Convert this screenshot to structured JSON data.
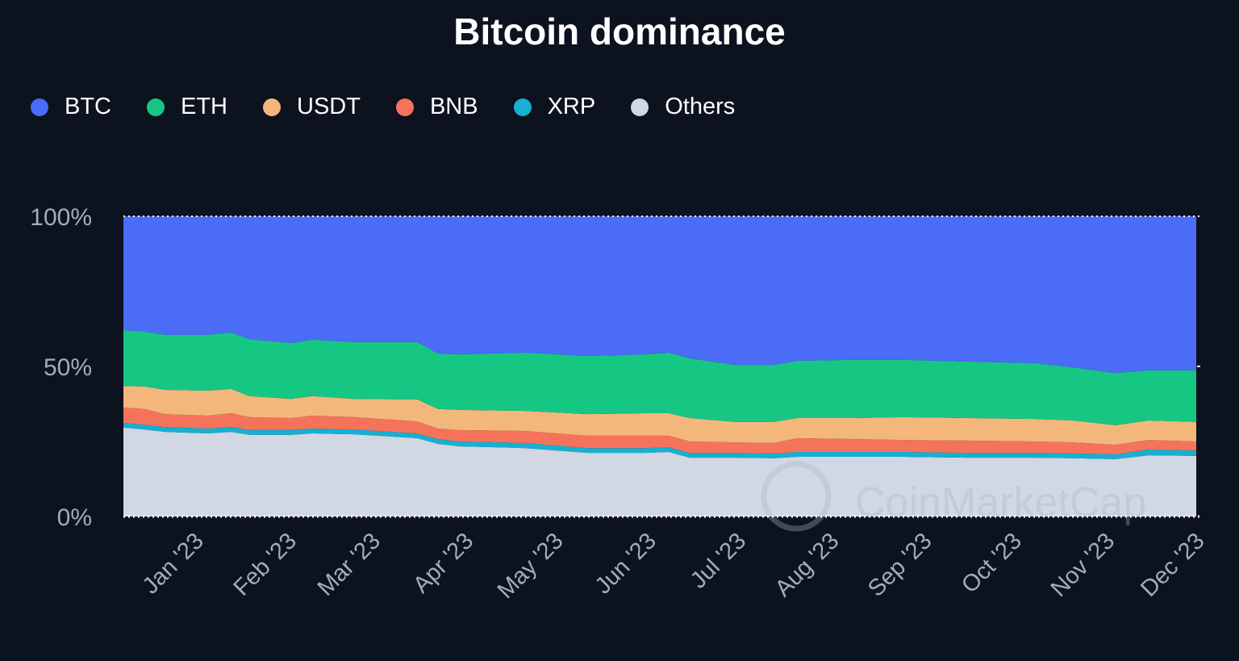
{
  "chart_data": {
    "type": "area",
    "stacked": true,
    "title": "Bitcoin dominance",
    "xlabel": "",
    "ylabel": "",
    "ylim": [
      0,
      100
    ],
    "y_ticks": [
      "0%",
      "50%",
      "100%"
    ],
    "y_tick_values": [
      0,
      50,
      100
    ],
    "x_ticks": [
      "Jan '23",
      "Feb '23",
      "Mar '23",
      "Apr '23",
      "May '23",
      "Jun '23",
      "Jul '23",
      "Aug '23",
      "Sep '23",
      "Oct '23",
      "Nov '23",
      "Dec '23"
    ],
    "x_tick_dates": [
      "2023-01-01",
      "2023-02-01",
      "2023-03-01",
      "2023-04-01",
      "2023-05-01",
      "2023-06-01",
      "2023-07-01",
      "2023-08-01",
      "2023-09-01",
      "2023-10-01",
      "2023-11-01",
      "2023-12-01"
    ],
    "xlim": [
      "2022-12-07",
      "2023-11-30"
    ],
    "legend_position": "top-left",
    "grid": false,
    "x": [
      "2022-12-07",
      "2022-12-14",
      "2022-12-21",
      "2023-01-04",
      "2023-01-12",
      "2023-01-18",
      "2023-02-01",
      "2023-02-08",
      "2023-02-22",
      "2023-03-15",
      "2023-03-22",
      "2023-03-29",
      "2023-04-20",
      "2023-05-11",
      "2023-05-30",
      "2023-06-07",
      "2023-06-14",
      "2023-06-29",
      "2023-07-12",
      "2023-07-20",
      "2023-08-08",
      "2023-08-24",
      "2023-09-15",
      "2023-10-07",
      "2023-10-20",
      "2023-11-03",
      "2023-11-14",
      "2023-11-30"
    ],
    "series": [
      {
        "name": "Others",
        "color": "#d1d7e3",
        "values": [
          29.6,
          29.0,
          28.2,
          27.7,
          28.2,
          27.2,
          27.2,
          27.7,
          27.4,
          26.1,
          24.2,
          23.4,
          22.8,
          21.2,
          21.2,
          21.5,
          19.6,
          19.6,
          19.4,
          19.9,
          19.9,
          19.9,
          19.6,
          19.6,
          19.4,
          19.1,
          20.4,
          20.2
        ]
      },
      {
        "name": "XRP",
        "color": "#16b0d2",
        "values": [
          1.6,
          1.6,
          1.6,
          1.6,
          1.6,
          1.6,
          1.6,
          1.6,
          1.6,
          1.6,
          1.6,
          1.6,
          1.7,
          1.6,
          1.6,
          1.6,
          1.6,
          1.6,
          1.6,
          1.6,
          1.6,
          1.6,
          1.6,
          1.6,
          1.6,
          1.6,
          1.9,
          1.8
        ]
      },
      {
        "name": "BNB",
        "color": "#f5735a",
        "values": [
          5.1,
          5.2,
          4.3,
          4.3,
          4.6,
          4.3,
          4.0,
          4.3,
          4.1,
          4.0,
          3.5,
          3.8,
          4.0,
          4.1,
          4.1,
          3.8,
          3.8,
          3.5,
          3.5,
          4.6,
          4.3,
          4.0,
          4.1,
          3.8,
          3.7,
          3.2,
          3.2,
          3.0
        ]
      },
      {
        "name": "USDT",
        "color": "#f3b77c",
        "values": [
          7.2,
          7.5,
          8.1,
          8.3,
          8.1,
          7.0,
          6.4,
          6.5,
          6.1,
          7.3,
          6.5,
          6.7,
          6.7,
          7.2,
          7.5,
          7.5,
          7.8,
          6.8,
          7.0,
          6.7,
          7.0,
          7.6,
          7.5,
          7.5,
          7.3,
          6.5,
          6.5,
          6.5
        ]
      },
      {
        "name": "ETH",
        "color": "#16c784",
        "values": [
          18.6,
          18.3,
          18.3,
          18.6,
          18.8,
          19.0,
          18.6,
          18.8,
          18.9,
          19.1,
          18.5,
          18.5,
          19.4,
          19.4,
          19.6,
          20.2,
          19.9,
          19.0,
          19.0,
          19.1,
          19.4,
          19.1,
          18.8,
          18.6,
          17.7,
          17.4,
          16.7,
          17.2
        ]
      },
      {
        "name": "BTC",
        "color": "#4a6cf7",
        "values": [
          37.9,
          38.4,
          39.5,
          39.5,
          38.7,
          40.9,
          42.2,
          41.1,
          41.9,
          41.9,
          45.7,
          46.0,
          45.4,
          46.5,
          46.0,
          45.4,
          47.3,
          49.5,
          49.5,
          48.1,
          47.8,
          47.8,
          48.4,
          48.9,
          50.3,
          52.2,
          51.3,
          51.3
        ]
      }
    ],
    "legend": [
      "BTC",
      "ETH",
      "USDT",
      "BNB",
      "XRP",
      "Others"
    ],
    "watermark": "CoinMarketCap"
  },
  "colors": {
    "background": "#0d121f",
    "axis_text": "#a6abbb"
  }
}
